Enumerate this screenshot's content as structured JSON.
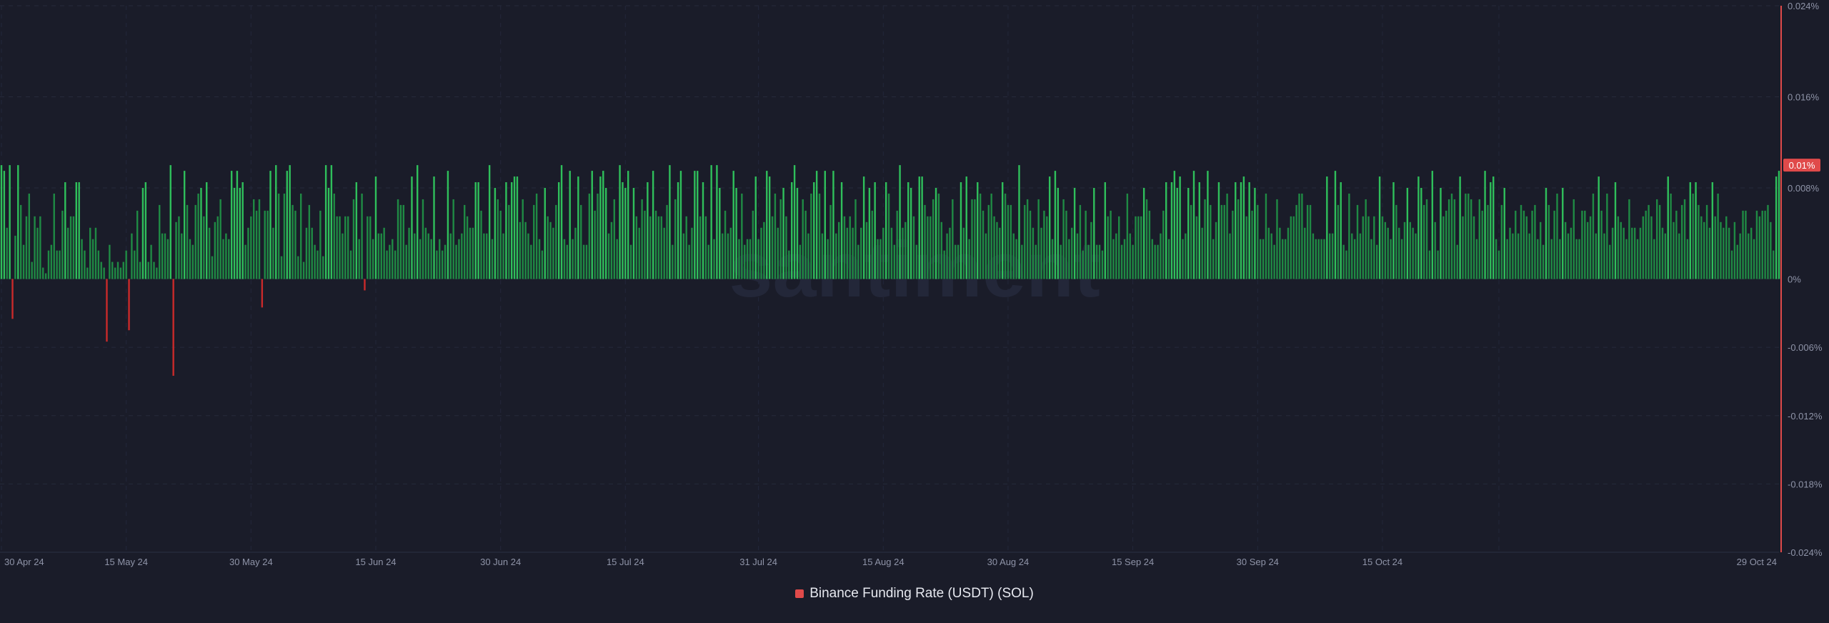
{
  "chart_data": {
    "type": "bar",
    "title": "",
    "series_name": "Binance Funding Rate (USDT) (SOL)",
    "y_unit": "%",
    "ylim": [
      -0.024,
      0.024
    ],
    "y_ticks": [
      "0.024%",
      "0.016%",
      "0.008%",
      "0%",
      "-0.006%",
      "-0.012%",
      "-0.018%",
      "-0.024%"
    ],
    "y_tick_values": [
      0.024,
      0.016,
      0.008,
      0,
      -0.006,
      -0.012,
      -0.018,
      -0.024
    ],
    "x_ticks": [
      "30 Apr 24",
      "15 May 24",
      "30 May 24",
      "15 Jun 24",
      "30 Jun 24",
      "15 Jul 24",
      "31 Jul 24",
      "15 Aug 24",
      "30 Aug 24",
      "15 Sep 24",
      "30 Sep 24",
      "15 Oct 24",
      "29 Oct 24"
    ],
    "x_tick_index": [
      0,
      45,
      90,
      135,
      180,
      225,
      273,
      318,
      363,
      408,
      453,
      498,
      540
    ],
    "current_value_label": "0.01%",
    "current_value": 0.01,
    "watermark": "santiment",
    "colors": {
      "positive": "#2fbf5b",
      "positive_dim": "#1f8a44",
      "negative": "#c92a2a",
      "axis_line": "#e04a4a",
      "badge": "#e04a4a"
    },
    "values": [
      0.01,
      0.0095,
      0.0045,
      0.01,
      -0.0035,
      0.0038,
      0.01,
      0.0065,
      0.003,
      0.0055,
      0.0075,
      0.0015,
      0.0055,
      0.0045,
      0.0055,
      0.001,
      0.0005,
      0.0025,
      0.003,
      0.0075,
      0.0025,
      0.0025,
      0.006,
      0.0085,
      0.0045,
      0.0055,
      0.0055,
      0.0085,
      0.0085,
      0.0035,
      0.0025,
      0.001,
      0.0045,
      0.0035,
      0.0045,
      0.0025,
      0.0015,
      0.001,
      -0.0055,
      0.003,
      0.0015,
      0.001,
      0.0015,
      0.001,
      0.0015,
      0.0025,
      -0.0045,
      0.004,
      0.0025,
      0.006,
      0.0015,
      0.008,
      0.0085,
      0.0015,
      0.003,
      0.0015,
      0.001,
      0.0065,
      0.004,
      0.004,
      0.0035,
      0.01,
      -0.0085,
      0.005,
      0.0055,
      0.004,
      0.0095,
      0.0065,
      0.0035,
      0.003,
      0.0065,
      0.0075,
      0.008,
      0.0055,
      0.0085,
      0.0045,
      0.002,
      0.005,
      0.0055,
      0.007,
      0.0035,
      0.004,
      0.0035,
      0.0095,
      0.008,
      0.0095,
      0.008,
      0.0085,
      0.003,
      0.0045,
      0.0055,
      0.007,
      0.006,
      0.007,
      -0.0025,
      0.006,
      0.006,
      0.0095,
      0.0045,
      0.01,
      0.0075,
      0.002,
      0.0075,
      0.0095,
      0.01,
      0.0065,
      0.006,
      0.002,
      0.0075,
      0.0015,
      0.0045,
      0.0065,
      0.0045,
      0.003,
      0.0025,
      0.006,
      0.002,
      0.01,
      0.008,
      0.01,
      0.0075,
      0.0055,
      0.0055,
      0.004,
      0.0055,
      0.0055,
      0.0025,
      0.007,
      0.0085,
      0.0035,
      0.0075,
      -0.001,
      0.0055,
      0.0055,
      0.0035,
      0.009,
      0.004,
      0.004,
      0.0045,
      0.0025,
      0.003,
      0.0035,
      0.0025,
      0.007,
      0.0065,
      0.0065,
      0.003,
      0.0045,
      0.009,
      0.004,
      0.01,
      0.0035,
      0.007,
      0.0045,
      0.004,
      0.0035,
      0.009,
      0.0025,
      0.0035,
      0.0025,
      0.003,
      0.0095,
      0.004,
      0.007,
      0.003,
      0.0035,
      0.004,
      0.0065,
      0.0055,
      0.0045,
      0.0045,
      0.0085,
      0.0085,
      0.006,
      0.004,
      0.004,
      0.01,
      0.0035,
      0.008,
      0.007,
      0.006,
      0.004,
      0.0085,
      0.0065,
      0.0085,
      0.009,
      0.009,
      0.005,
      0.007,
      0.005,
      0.004,
      0.003,
      0.0065,
      0.0075,
      0.0035,
      0.0025,
      0.008,
      0.0055,
      0.005,
      0.0045,
      0.0065,
      0.0085,
      0.01,
      0.0035,
      0.003,
      0.0095,
      0.0035,
      0.0045,
      0.009,
      0.0065,
      0.003,
      0.003,
      0.0075,
      0.0095,
      0.006,
      0.0075,
      0.009,
      0.0095,
      0.008,
      0.004,
      0.005,
      0.007,
      0.0035,
      0.01,
      0.0085,
      0.008,
      0.0095,
      0.003,
      0.008,
      0.0055,
      0.0045,
      0.007,
      0.006,
      0.0085,
      0.0055,
      0.0095,
      0.006,
      0.0055,
      0.0055,
      0.0045,
      0.0065,
      0.01,
      0.003,
      0.007,
      0.0085,
      0.0095,
      0.004,
      0.0055,
      0.003,
      0.0045,
      0.0095,
      0.0095,
      0.0055,
      0.0085,
      0.0055,
      0.003,
      0.01,
      0.0035,
      0.01,
      0.008,
      0.004,
      0.006,
      0.004,
      0.0045,
      0.0095,
      0.008,
      0.0035,
      0.0075,
      0.003,
      0.0035,
      0.0035,
      0.006,
      0.009,
      0.0035,
      0.0045,
      0.005,
      0.0095,
      0.009,
      0.0055,
      0.0075,
      0.0045,
      0.007,
      0.008,
      0.0055,
      0.0025,
      0.0085,
      0.01,
      0.008,
      0.003,
      0.007,
      0.006,
      0.004,
      0.0075,
      0.0085,
      0.0095,
      0.0075,
      0.004,
      0.0095,
      0.0035,
      0.0065,
      0.0095,
      0.004,
      0.005,
      0.0085,
      0.0055,
      0.0045,
      0.0055,
      0.0045,
      0.007,
      0.003,
      0.0045,
      0.009,
      0.005,
      0.008,
      0.006,
      0.0085,
      0.0035,
      0.0035,
      0.0045,
      0.0085,
      0.0075,
      0.0045,
      0.003,
      0.006,
      0.01,
      0.0045,
      0.005,
      0.0085,
      0.008,
      0.0055,
      0.003,
      0.009,
      0.009,
      0.0065,
      0.0055,
      0.0055,
      0.007,
      0.008,
      0.0075,
      0.005,
      0.0025,
      0.004,
      0.0045,
      0.007,
      0.003,
      0.003,
      0.0085,
      0.0045,
      0.009,
      0.0035,
      0.007,
      0.007,
      0.0085,
      0.0075,
      0.006,
      0.004,
      0.0065,
      0.0075,
      0.0055,
      0.005,
      0.0045,
      0.0085,
      0.0075,
      0.0065,
      0.0065,
      0.004,
      0.0035,
      0.01,
      0.003,
      0.0065,
      0.007,
      0.006,
      0.0045,
      0.003,
      0.007,
      0.0045,
      0.006,
      0.0055,
      0.009,
      0.0035,
      0.0095,
      0.008,
      0.003,
      0.007,
      0.006,
      0.0035,
      0.0045,
      0.008,
      0.004,
      0.0065,
      0.0025,
      0.006,
      0.003,
      0.005,
      0.008,
      0.003,
      0.003,
      0.0025,
      0.0085,
      0.0055,
      0.006,
      0.0035,
      0.004,
      0.0055,
      0.003,
      0.0035,
      0.0075,
      0.004,
      0.003,
      0.0055,
      0.0055,
      0.0055,
      0.008,
      0.007,
      0.006,
      0.0035,
      0.003,
      0.003,
      0.004,
      0.006,
      0.0085,
      0.0035,
      0.0085,
      0.0095,
      0.008,
      0.009,
      0.0035,
      0.004,
      0.008,
      0.0065,
      0.0095,
      0.0055,
      0.0085,
      0.0045,
      0.007,
      0.0095,
      0.0065,
      0.0035,
      0.005,
      0.0085,
      0.0065,
      0.0065,
      0.0075,
      0.004,
      0.006,
      0.0085,
      0.007,
      0.0085,
      0.009,
      0.0055,
      0.0085,
      0.006,
      0.008,
      0.0065,
      0.0035,
      0.0035,
      0.0075,
      0.0045,
      0.004,
      0.003,
      0.007,
      0.0045,
      0.0035,
      0.0035,
      0.0045,
      0.0055,
      0.0055,
      0.0065,
      0.0075,
      0.0075,
      0.0045,
      0.0065,
      0.0065,
      0.004,
      0.0035,
      0.0035,
      0.0035,
      0.0035,
      0.009,
      0.004,
      0.004,
      0.0095,
      0.0065,
      0.0085,
      0.003,
      0.0025,
      0.0075,
      0.004,
      0.0035,
      0.0065,
      0.004,
      0.0055,
      0.007,
      0.0055,
      0.0035,
      0.0055,
      0.003,
      0.009,
      0.0055,
      0.005,
      0.0045,
      0.0035,
      0.0085,
      0.0065,
      0.0045,
      0.0035,
      0.005,
      0.008,
      0.005,
      0.0045,
      0.004,
      0.009,
      0.008,
      0.0065,
      0.007,
      0.0025,
      0.0095,
      0.005,
      0.0025,
      0.008,
      0.0055,
      0.006,
      0.007,
      0.0075,
      0.007,
      0.003,
      0.009,
      0.0055,
      0.0075,
      0.0075,
      0.007,
      0.0055,
      0.0035,
      0.007,
      0.006,
      0.0095,
      0.0065,
      0.0085,
      0.009,
      0.0035,
      0.0025,
      0.0065,
      0.008,
      0.0035,
      0.0045,
      0.004,
      0.006,
      0.004,
      0.0065,
      0.006,
      0.0055,
      0.004,
      0.006,
      0.0065,
      0.0035,
      0.005,
      0.003,
      0.008,
      0.0065,
      0.0035,
      0.006,
      0.0075,
      0.0035,
      0.008,
      0.005,
      0.004,
      0.0045,
      0.007,
      0.0035,
      0.0035,
      0.006,
      0.006,
      0.005,
      0.0055,
      0.0075,
      0.004,
      0.009,
      0.006,
      0.004,
      0.0075,
      0.003,
      0.0045,
      0.0085,
      0.0055,
      0.005,
      0.0045,
      0.0035,
      0.007,
      0.0045,
      0.0045,
      0.0035,
      0.0045,
      0.0055,
      0.006,
      0.0065,
      0.0055,
      0.0035,
      0.007,
      0.0065,
      0.0045,
      0.004,
      0.009,
      0.0075,
      0.005,
      0.006,
      0.004,
      0.0065,
      0.007,
      0.0035,
      0.0085,
      0.0075,
      0.0085,
      0.0065,
      0.0055,
      0.005,
      0.0065,
      0.0045,
      0.0085,
      0.0055,
      0.0075,
      0.005,
      0.0045,
      0.0055,
      0.0045,
      0.0025,
      0.005,
      0.003,
      0.004,
      0.006,
      0.006,
      0.004,
      0.0045,
      0.0035,
      0.006,
      0.0055,
      0.006,
      0.006,
      0.0065,
      0.005,
      0.0025,
      0.009,
      0.0095
    ]
  },
  "legend": {
    "label": "Binance Funding Rate (USDT) (SOL)"
  }
}
